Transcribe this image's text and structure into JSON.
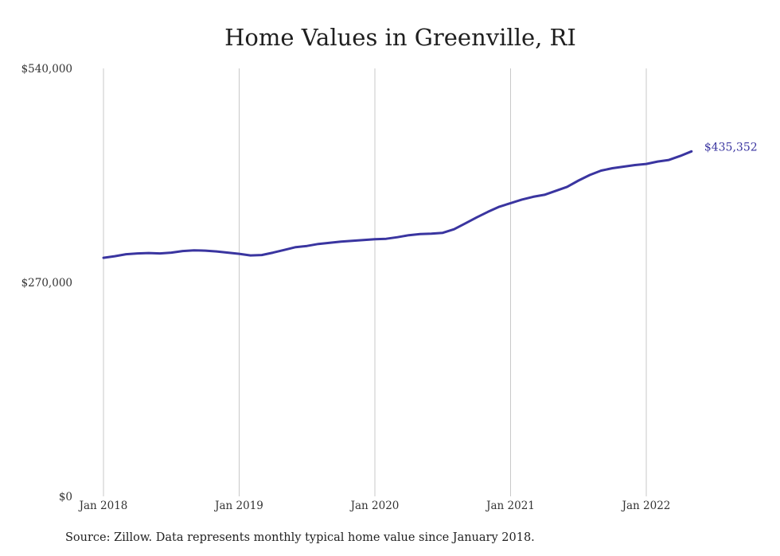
{
  "chart_data": {
    "type": "line",
    "title": "Home Values in Greenville, RI",
    "xlabel": "",
    "ylabel": "",
    "ylim": [
      0,
      540000
    ],
    "yticks": [
      0,
      270000,
      540000
    ],
    "ytick_labels": [
      "$0",
      "$270,000",
      "$540,000"
    ],
    "xlim": [
      "2018-01",
      "2022-05"
    ],
    "xticks": [
      "2018-01",
      "2019-01",
      "2020-01",
      "2021-01",
      "2022-01"
    ],
    "xtick_labels": [
      "Jan 2018",
      "Jan 2019",
      "Jan 2020",
      "Jan 2021",
      "Jan 2022"
    ],
    "grid": "vertical lines at x ticks",
    "legend": "none",
    "series": [
      {
        "color": "#3a35a0",
        "x": [
          "2018-01",
          "2018-02",
          "2018-03",
          "2018-04",
          "2018-05",
          "2018-06",
          "2018-07",
          "2018-08",
          "2018-09",
          "2018-10",
          "2018-11",
          "2018-12",
          "2019-01",
          "2019-02",
          "2019-03",
          "2019-04",
          "2019-05",
          "2019-06",
          "2019-07",
          "2019-08",
          "2019-09",
          "2019-10",
          "2019-11",
          "2019-12",
          "2020-01",
          "2020-02",
          "2020-03",
          "2020-04",
          "2020-05",
          "2020-06",
          "2020-07",
          "2020-08",
          "2020-09",
          "2020-10",
          "2020-11",
          "2020-12",
          "2021-01",
          "2021-02",
          "2021-03",
          "2021-04",
          "2021-05",
          "2021-06",
          "2021-07",
          "2021-08",
          "2021-09",
          "2021-10",
          "2021-11",
          "2021-12",
          "2022-01",
          "2022-02",
          "2022-03",
          "2022-04",
          "2022-05"
        ],
        "y": [
          301000,
          303000,
          305500,
          306500,
          307000,
          306500,
          307500,
          309500,
          310500,
          310000,
          309000,
          307500,
          306000,
          304000,
          304500,
          307500,
          311000,
          314500,
          316000,
          318500,
          320000,
          321500,
          322500,
          323500,
          324500,
          325000,
          327000,
          329500,
          331000,
          331500,
          332500,
          337000,
          344500,
          352000,
          359000,
          365500,
          370000,
          374500,
          378000,
          380500,
          385500,
          390500,
          398500,
          405500,
          411000,
          414000,
          416000,
          418000,
          419500,
          422500,
          424500,
          429500,
          435352
        ],
        "end_label": "$435,352"
      }
    ]
  },
  "source_note": "Source: Zillow. Data represents monthly typical home value since January 2018."
}
